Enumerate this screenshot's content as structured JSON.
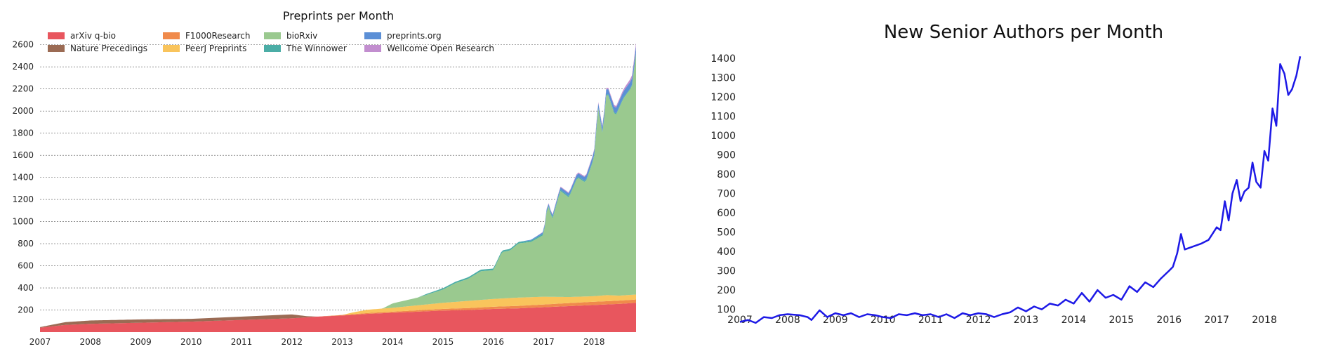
{
  "chart_data": [
    {
      "type": "area",
      "stacked": true,
      "title": "Preprints per Month",
      "xlabel": "",
      "ylabel": "",
      "x_start": 2007,
      "x_end": 2018.833,
      "xticks": [
        "2007",
        "2008",
        "2009",
        "2010",
        "2011",
        "2012",
        "2013",
        "2014",
        "2015",
        "2016",
        "2017",
        "2018"
      ],
      "yticks": [
        200,
        400,
        600,
        800,
        1000,
        1200,
        1400,
        1600,
        1800,
        2000,
        2200,
        2400,
        2600
      ],
      "ylim": [
        0,
        2700
      ],
      "grid": "horizontal dashed",
      "legend": "top-left",
      "legend_layout": [
        [
          "arXiv q-bio",
          "F1000Research",
          "bioRxiv",
          "preprints.org"
        ],
        [
          "Nature Precedings",
          "PeerJ Preprints",
          "The Winnower",
          "Wellcome Open Research"
        ]
      ],
      "series": [
        {
          "name": "arXiv q-bio",
          "color": "#e8565e",
          "points": [
            [
              2007,
              40
            ],
            [
              2007.5,
              65
            ],
            [
              2008,
              75
            ],
            [
              2009,
              85
            ],
            [
              2010,
              95
            ],
            [
              2011,
              110
            ],
            [
              2012,
              125
            ],
            [
              2012.5,
              140
            ],
            [
              2013,
              150
            ],
            [
              2013.5,
              165
            ],
            [
              2014,
              175
            ],
            [
              2014.5,
              185
            ],
            [
              2015,
              195
            ],
            [
              2015.5,
              200
            ],
            [
              2016,
              210
            ],
            [
              2016.5,
              215
            ],
            [
              2017,
              225
            ],
            [
              2017.5,
              235
            ],
            [
              2018,
              245
            ],
            [
              2018.5,
              255
            ],
            [
              2018.833,
              265
            ]
          ]
        },
        {
          "name": "Nature Precedings",
          "color": "#9b6b54",
          "points": [
            [
              2007,
              5
            ],
            [
              2007.5,
              25
            ],
            [
              2008,
              30
            ],
            [
              2009,
              30
            ],
            [
              2010,
              25
            ],
            [
              2011,
              30
            ],
            [
              2012,
              35
            ],
            [
              2012.3,
              10
            ],
            [
              2012.5,
              0
            ],
            [
              2018.833,
              0
            ]
          ]
        },
        {
          "name": "F1000Research",
          "color": "#f08a4b",
          "points": [
            [
              2007,
              0
            ],
            [
              2012.5,
              0
            ],
            [
              2013,
              5
            ],
            [
              2014,
              10
            ],
            [
              2015,
              15
            ],
            [
              2016,
              20
            ],
            [
              2017,
              25
            ],
            [
              2018,
              30
            ],
            [
              2018.833,
              30
            ]
          ]
        },
        {
          "name": "PeerJ Preprints",
          "color": "#f9c45c",
          "points": [
            [
              2007,
              0
            ],
            [
              2013,
              0
            ],
            [
              2013.2,
              15
            ],
            [
              2013.5,
              30
            ],
            [
              2014,
              35
            ],
            [
              2014.5,
              45
            ],
            [
              2015,
              55
            ],
            [
              2015.5,
              65
            ],
            [
              2016,
              70
            ],
            [
              2016.5,
              75
            ],
            [
              2017,
              70
            ],
            [
              2017.5,
              55
            ],
            [
              2018,
              50
            ],
            [
              2018.25,
              55
            ],
            [
              2018.5,
              45
            ],
            [
              2018.833,
              45
            ]
          ]
        },
        {
          "name": "bioRxiv",
          "color": "#9ac98f",
          "points": [
            [
              2007,
              0
            ],
            [
              2013.8,
              0
            ],
            [
              2014,
              40
            ],
            [
              2014.5,
              70
            ],
            [
              2015,
              120
            ],
            [
              2015.25,
              170
            ],
            [
              2015.5,
              200
            ],
            [
              2015.75,
              260
            ],
            [
              2016,
              260
            ],
            [
              2016.17,
              420
            ],
            [
              2016.33,
              430
            ],
            [
              2016.5,
              490
            ],
            [
              2016.75,
              500
            ],
            [
              2017,
              560
            ],
            [
              2017.08,
              840
            ],
            [
              2017.17,
              700
            ],
            [
              2017.33,
              960
            ],
            [
              2017.5,
              900
            ],
            [
              2017.67,
              1080
            ],
            [
              2017.83,
              1030
            ],
            [
              2018,
              1250
            ],
            [
              2018.08,
              1700
            ],
            [
              2018.17,
              1450
            ],
            [
              2018.25,
              1850
            ],
            [
              2018.42,
              1620
            ],
            [
              2018.58,
              1780
            ],
            [
              2018.75,
              1880
            ],
            [
              2018.833,
              2180
            ]
          ]
        },
        {
          "name": "The Winnower",
          "color": "#4bada6",
          "points": [
            [
              2007,
              0
            ],
            [
              2014.5,
              0
            ],
            [
              2014.67,
              8
            ],
            [
              2015,
              12
            ],
            [
              2016,
              15
            ],
            [
              2017,
              12
            ],
            [
              2018,
              10
            ],
            [
              2018.833,
              8
            ]
          ]
        },
        {
          "name": "preprints.org",
          "color": "#5b8fd6",
          "points": [
            [
              2007,
              0
            ],
            [
              2016.5,
              0
            ],
            [
              2016.67,
              5
            ],
            [
              2017,
              15
            ],
            [
              2017.5,
              25
            ],
            [
              2018,
              40
            ],
            [
              2018.25,
              45
            ],
            [
              2018.5,
              55
            ],
            [
              2018.833,
              60
            ]
          ]
        },
        {
          "name": "Wellcome Open Research",
          "color": "#c28ecf",
          "points": [
            [
              2007,
              0
            ],
            [
              2016.83,
              0
            ],
            [
              2017,
              5
            ],
            [
              2017.5,
              8
            ],
            [
              2018,
              10
            ],
            [
              2018.5,
              15
            ],
            [
              2018.833,
              30
            ]
          ]
        }
      ]
    },
    {
      "type": "line",
      "title": "New Senior Authors per Month",
      "xlabel": "",
      "ylabel": "",
      "x_start": 2007,
      "x_end": 2018.75,
      "xticks": [
        "2007",
        "2008",
        "2009",
        "2010",
        "2011",
        "2012",
        "2013",
        "2014",
        "2015",
        "2016",
        "2017",
        "2018"
      ],
      "yticks": [
        100,
        200,
        300,
        400,
        500,
        600,
        700,
        800,
        900,
        1000,
        1100,
        1200,
        1300,
        1400
      ],
      "ylim": [
        15,
        1440
      ],
      "grid": "off",
      "series": [
        {
          "name": "",
          "color": "#1d19e6",
          "points": [
            [
              2007,
              35
            ],
            [
              2007.17,
              45
            ],
            [
              2007.33,
              30
            ],
            [
              2007.5,
              60
            ],
            [
              2007.67,
              55
            ],
            [
              2007.83,
              70
            ],
            [
              2008,
              75
            ],
            [
              2008.25,
              70
            ],
            [
              2008.42,
              60
            ],
            [
              2008.5,
              45
            ],
            [
              2008.67,
              95
            ],
            [
              2008.83,
              60
            ],
            [
              2009,
              80
            ],
            [
              2009.17,
              70
            ],
            [
              2009.33,
              80
            ],
            [
              2009.5,
              60
            ],
            [
              2009.67,
              75
            ],
            [
              2009.83,
              70
            ],
            [
              2010,
              60
            ],
            [
              2010.17,
              55
            ],
            [
              2010.33,
              75
            ],
            [
              2010.5,
              70
            ],
            [
              2010.67,
              80
            ],
            [
              2010.83,
              70
            ],
            [
              2011,
              75
            ],
            [
              2011.17,
              60
            ],
            [
              2011.33,
              75
            ],
            [
              2011.5,
              55
            ],
            [
              2011.67,
              80
            ],
            [
              2011.83,
              70
            ],
            [
              2012,
              80
            ],
            [
              2012.17,
              75
            ],
            [
              2012.33,
              60
            ],
            [
              2012.5,
              75
            ],
            [
              2012.67,
              85
            ],
            [
              2012.83,
              110
            ],
            [
              2013,
              90
            ],
            [
              2013.17,
              115
            ],
            [
              2013.33,
              100
            ],
            [
              2013.5,
              130
            ],
            [
              2013.67,
              120
            ],
            [
              2013.83,
              150
            ],
            [
              2014,
              130
            ],
            [
              2014.17,
              185
            ],
            [
              2014.33,
              140
            ],
            [
              2014.5,
              200
            ],
            [
              2014.67,
              160
            ],
            [
              2014.83,
              175
            ],
            [
              2015,
              150
            ],
            [
              2015.17,
              220
            ],
            [
              2015.33,
              190
            ],
            [
              2015.5,
              240
            ],
            [
              2015.67,
              215
            ],
            [
              2015.83,
              260
            ],
            [
              2016,
              300
            ],
            [
              2016.08,
              320
            ],
            [
              2016.17,
              390
            ],
            [
              2016.25,
              490
            ],
            [
              2016.33,
              410
            ],
            [
              2016.5,
              425
            ],
            [
              2016.67,
              440
            ],
            [
              2016.83,
              460
            ],
            [
              2017,
              525
            ],
            [
              2017.08,
              510
            ],
            [
              2017.17,
              660
            ],
            [
              2017.25,
              560
            ],
            [
              2017.33,
              700
            ],
            [
              2017.42,
              770
            ],
            [
              2017.5,
              660
            ],
            [
              2017.58,
              710
            ],
            [
              2017.67,
              730
            ],
            [
              2017.75,
              860
            ],
            [
              2017.83,
              760
            ],
            [
              2017.92,
              730
            ],
            [
              2018,
              920
            ],
            [
              2018.08,
              870
            ],
            [
              2018.17,
              1140
            ],
            [
              2018.25,
              1050
            ],
            [
              2018.33,
              1370
            ],
            [
              2018.42,
              1320
            ],
            [
              2018.5,
              1210
            ],
            [
              2018.58,
              1240
            ],
            [
              2018.67,
              1310
            ],
            [
              2018.75,
              1410
            ]
          ]
        }
      ]
    }
  ]
}
